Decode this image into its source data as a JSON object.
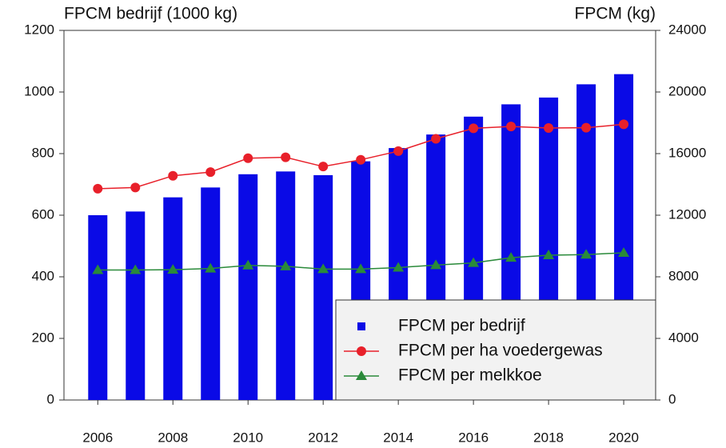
{
  "chart_data": {
    "type": "combo",
    "y_label": "FPCM bedrijf (1000 kg)",
    "y2_label": "FPCM (kg)",
    "x": [
      2006,
      2007,
      2008,
      2009,
      2010,
      2011,
      2012,
      2013,
      2014,
      2015,
      2016,
      2017,
      2018,
      2019,
      2020
    ],
    "xlim": [
      2005.1,
      2020.85
    ],
    "xticks": [
      2006,
      2008,
      2010,
      2012,
      2014,
      2016,
      2018,
      2020
    ],
    "ylim": [
      0,
      1200
    ],
    "yticks": [
      0,
      200,
      400,
      600,
      800,
      1000,
      1200
    ],
    "y2lim": [
      0,
      24000
    ],
    "y2ticks": [
      0,
      4000,
      8000,
      12000,
      16000,
      20000,
      24000
    ],
    "legend": "lower right",
    "series": [
      {
        "name": "FPCM per bedrijf",
        "type": "bar",
        "color": "#0a0ae6",
        "values": [
          600,
          612,
          658,
          690,
          733,
          742,
          730,
          775,
          818,
          862,
          920,
          960,
          982,
          1025,
          1058
        ]
      },
      {
        "name": "FPCM per ha voedergewas",
        "type": "line",
        "marker": "circle",
        "color": "#e8202a",
        "axis": "y2",
        "values": [
          13720,
          13800,
          14560,
          14800,
          15700,
          15760,
          15160,
          15600,
          16160,
          16960,
          17640,
          17760,
          17660,
          17680,
          17900
        ]
      },
      {
        "name": "FPCM per melkkoe",
        "type": "line",
        "marker": "triangle",
        "color": "#2a8a3a",
        "axis": "y2",
        "values": [
          8440,
          8440,
          8460,
          8540,
          8740,
          8680,
          8500,
          8500,
          8600,
          8760,
          8900,
          9240,
          9400,
          9440,
          9560
        ]
      }
    ]
  }
}
